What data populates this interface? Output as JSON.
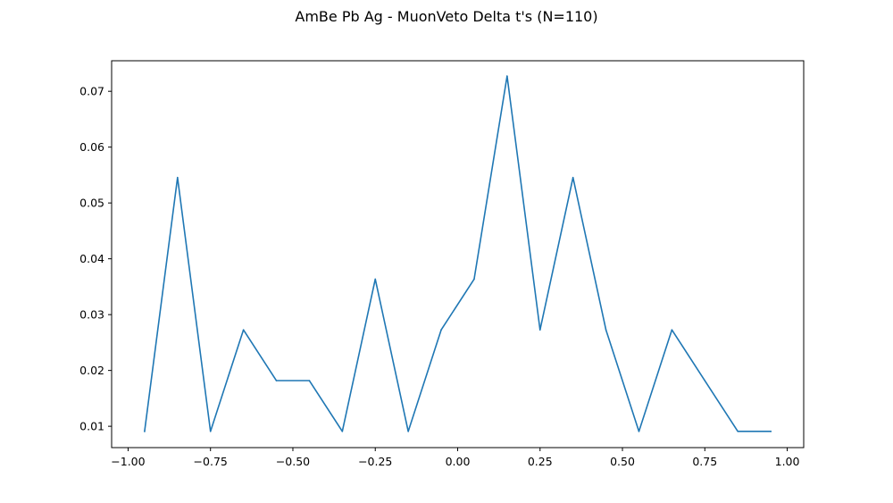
{
  "chart_data": {
    "type": "line",
    "title": "AmBe Pb Ag - MuonVeto Delta t's (N=110)",
    "xlabel": "",
    "ylabel": "",
    "xlim": [
      -1.05,
      1.05
    ],
    "ylim": [
      0.00618,
      0.07547
    ],
    "x_ticks": [
      -1.0,
      -0.75,
      -0.5,
      -0.25,
      0.0,
      0.25,
      0.5,
      0.75,
      1.0
    ],
    "x_tick_labels": [
      "−1.00",
      "−0.75",
      "−0.50",
      "−0.25",
      "0.00",
      "0.25",
      "0.50",
      "0.75",
      "1.00"
    ],
    "y_ticks": [
      0.01,
      0.02,
      0.03,
      0.04,
      0.05,
      0.06,
      0.07
    ],
    "y_tick_labels": [
      "0.01",
      "0.02",
      "0.03",
      "0.04",
      "0.05",
      "0.06",
      "0.07"
    ],
    "grid": false,
    "series": [
      {
        "color": "#1f77b4",
        "x": [
          -0.95,
          -0.85,
          -0.75,
          -0.65,
          -0.55,
          -0.45,
          -0.35,
          -0.25,
          -0.15,
          -0.05,
          0.05,
          0.15,
          0.25,
          0.35,
          0.45,
          0.55,
          0.65,
          0.75,
          0.85,
          0.95
        ],
        "y": [
          0.00909,
          0.05455,
          0.00909,
          0.02727,
          0.01818,
          0.01818,
          0.00909,
          0.03636,
          0.00909,
          0.02727,
          0.03636,
          0.07273,
          0.02727,
          0.05455,
          0.02727,
          0.00909,
          0.02727,
          0.01818,
          0.00909,
          0.00909
        ]
      }
    ]
  }
}
